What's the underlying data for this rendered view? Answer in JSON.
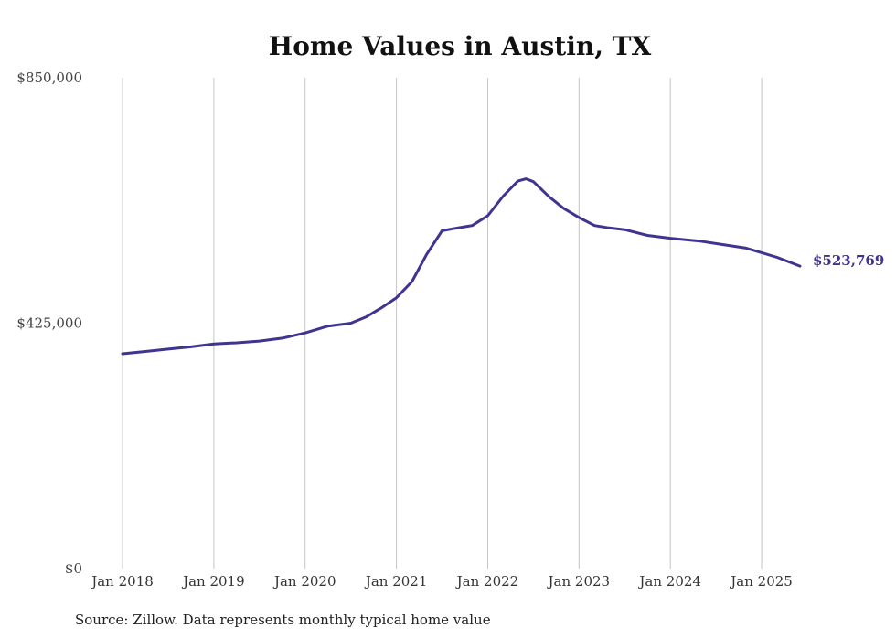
{
  "chart_data": {
    "type": "line",
    "title": "Home Values in Austin, TX",
    "source_note": "Source: Zillow. Data represents monthly typical home value",
    "xlabel": "",
    "ylabel": "",
    "ylim": [
      0,
      850000
    ],
    "y_ticks": [
      {
        "value": 850000,
        "label": "$850,000"
      },
      {
        "value": 425000,
        "label": "$425,000"
      },
      {
        "value": 0,
        "label": "$0"
      }
    ],
    "x_ticks": [
      {
        "value": 2018.0,
        "label": "Jan 2018"
      },
      {
        "value": 2019.0,
        "label": "Jan 2019"
      },
      {
        "value": 2020.0,
        "label": "Jan 2020"
      },
      {
        "value": 2021.0,
        "label": "Jan 2021"
      },
      {
        "value": 2022.0,
        "label": "Jan 2022"
      },
      {
        "value": 2023.0,
        "label": "Jan 2023"
      },
      {
        "value": 2024.0,
        "label": "Jan 2024"
      },
      {
        "value": 2025.0,
        "label": "Jan 2025"
      }
    ],
    "xlim": [
      2018.0,
      2025.42
    ],
    "grid": "vertical",
    "series": [
      {
        "color": "#3f3590",
        "end_label": "$523,769",
        "x": [
          2018.0,
          2018.25,
          2018.5,
          2018.75,
          2019.0,
          2019.25,
          2019.5,
          2019.75,
          2020.0,
          2020.25,
          2020.5,
          2020.67,
          2020.83,
          2021.0,
          2021.17,
          2021.33,
          2021.5,
          2021.67,
          2021.83,
          2022.0,
          2022.17,
          2022.33,
          2022.42,
          2022.5,
          2022.67,
          2022.83,
          2023.0,
          2023.17,
          2023.33,
          2023.5,
          2023.75,
          2024.0,
          2024.33,
          2024.58,
          2024.83,
          2025.0,
          2025.17,
          2025.42
        ],
        "y": [
          372000,
          376000,
          380000,
          384000,
          389000,
          391000,
          394000,
          399000,
          408000,
          420000,
          425000,
          436000,
          451000,
          469000,
          497000,
          544000,
          585000,
          590000,
          594000,
          611000,
          645000,
          671000,
          675000,
          670000,
          644000,
          624000,
          608000,
          594000,
          590000,
          587000,
          577000,
          572000,
          567000,
          561000,
          555000,
          547000,
          539000,
          523769
        ]
      }
    ]
  }
}
